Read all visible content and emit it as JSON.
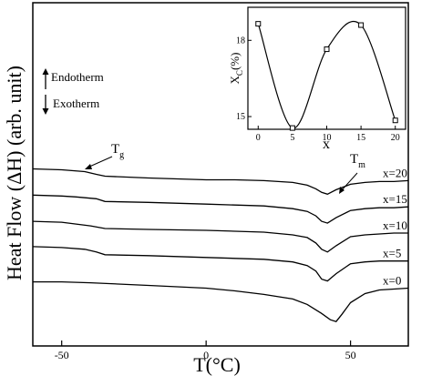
{
  "chart_data": [
    {
      "type": "line",
      "xlabel": "T(°C)",
      "ylabel": "Heat Flow (ΔH) (arb. unit)",
      "xlim": [
        -60,
        70
      ],
      "x_ticks": [
        "-50",
        "0",
        "50"
      ],
      "x_tick_values": [
        -50,
        0,
        50
      ],
      "legend_labels": {
        "endotherm": "Endotherm",
        "exotherm": "Exotherm"
      },
      "annotations": {
        "tg": "T",
        "tg_sub": "g",
        "tm": "T",
        "tm_sub": "m"
      },
      "series": [
        {
          "name": "x=20",
          "x": [
            -60,
            -50,
            -42,
            -38,
            -35,
            -20,
            0,
            10,
            20,
            30,
            35,
            38,
            40,
            42,
            45,
            50,
            55,
            60,
            65,
            70
          ],
          "y": [
            184,
            185,
            187,
            190,
            192,
            194,
            196,
            196,
            197,
            199,
            202,
            206,
            210,
            212,
            207,
            201,
            199,
            198,
            198,
            197
          ]
        },
        {
          "name": "x=15",
          "x": [
            -60,
            -50,
            -45,
            -38,
            -35,
            -20,
            0,
            10,
            20,
            30,
            35,
            38,
            40,
            42,
            45,
            50,
            55,
            60,
            65,
            70
          ],
          "y": [
            213,
            214,
            215,
            217,
            220,
            221,
            223,
            224,
            225,
            228,
            231,
            236,
            242,
            244,
            238,
            230,
            228,
            227,
            227,
            226
          ]
        },
        {
          "name": "x=10",
          "x": [
            -60,
            -50,
            -45,
            -40,
            -35,
            -20,
            0,
            10,
            20,
            30,
            35,
            38,
            40,
            42,
            45,
            50,
            55,
            60,
            65,
            70
          ],
          "y": [
            242,
            243,
            245,
            247,
            250,
            251,
            252,
            253,
            254,
            257,
            260,
            266,
            273,
            276,
            269,
            259,
            257,
            256,
            255,
            255
          ]
        },
        {
          "name": "x=5",
          "x": [
            -60,
            -50,
            -42,
            -38,
            -35,
            -20,
            0,
            10,
            20,
            30,
            35,
            38,
            40,
            42,
            45,
            50,
            55,
            60,
            65,
            70
          ],
          "y": [
            270,
            271,
            273,
            276,
            279,
            280,
            282,
            283,
            284,
            287,
            291,
            297,
            306,
            308,
            300,
            289,
            287,
            286,
            286,
            286
          ]
        },
        {
          "name": "x=0",
          "x": [
            -60,
            -50,
            -40,
            -20,
            0,
            10,
            20,
            30,
            35,
            40,
            43,
            45,
            47,
            50,
            55,
            60,
            65,
            70
          ],
          "y": [
            309,
            309,
            310,
            313,
            316,
            319,
            323,
            328,
            334,
            344,
            351,
            353,
            345,
            332,
            322,
            318,
            317,
            316
          ]
        }
      ],
      "ylim": [
        380,
        0
      ]
    },
    {
      "type": "scatter",
      "xlabel": "x",
      "ylabel": "X",
      "ylabel_sub": "C",
      "ylabel_suffix": "(%)",
      "x_ticks": [
        "0",
        "5",
        "10",
        "15",
        "20"
      ],
      "y_ticks": [
        "18",
        "15"
      ],
      "xlim": [
        -1.5,
        21.5
      ],
      "ylim": [
        14.5,
        19.3
      ],
      "points": [
        {
          "x": 0,
          "y": 18.65
        },
        {
          "x": 5,
          "y": 14.55
        },
        {
          "x": 10,
          "y": 17.65
        },
        {
          "x": 15,
          "y": 18.6
        },
        {
          "x": 20,
          "y": 14.85
        }
      ]
    }
  ]
}
